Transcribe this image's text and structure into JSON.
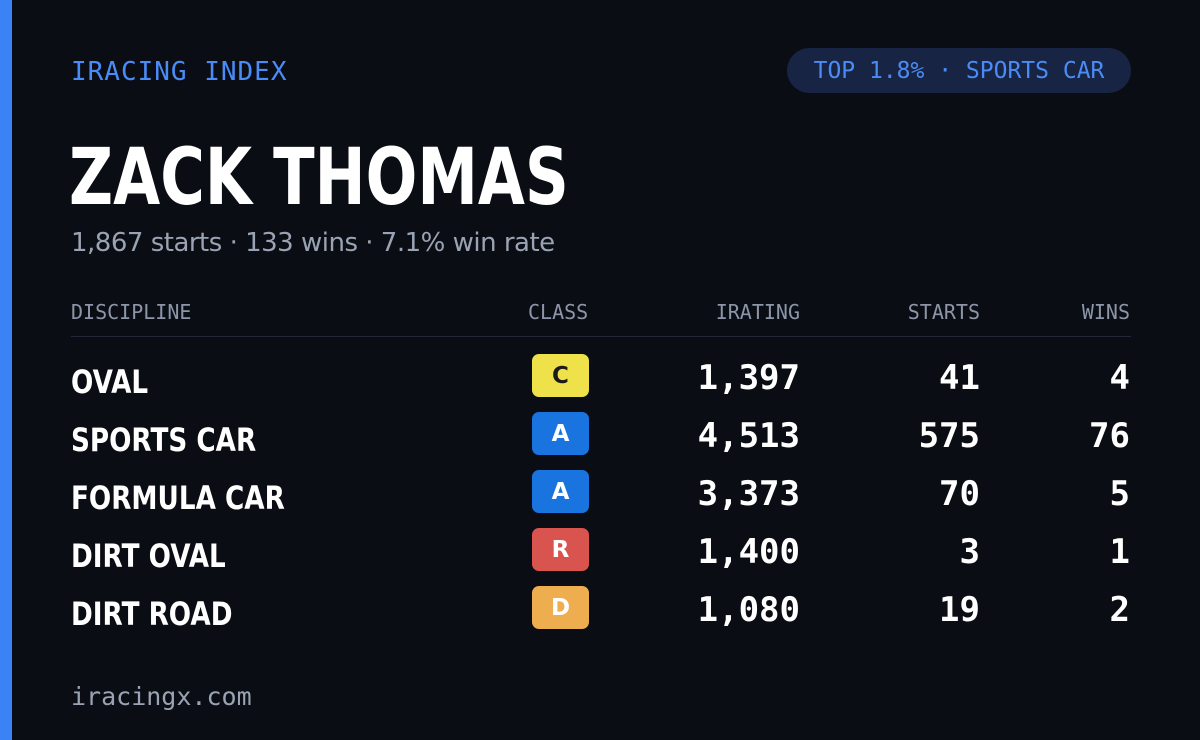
{
  "brand": "IRACING INDEX",
  "rank_badge": "TOP 1.8% · SPORTS CAR",
  "driver": {
    "name": "ZACK THOMAS",
    "summary": "1,867 starts · 133 wins · 7.1% win rate"
  },
  "table": {
    "headers": {
      "discipline": "DISCIPLINE",
      "class": "CLASS",
      "irating": "IRATING",
      "starts": "STARTS",
      "wins": "WINS"
    },
    "rows": [
      {
        "discipline": "OVAL",
        "class": "C",
        "class_color": "#efe14a",
        "class_text_color": "#1a1a1a",
        "irating": "1,397",
        "starts": "41",
        "wins": "4"
      },
      {
        "discipline": "SPORTS CAR",
        "class": "A",
        "class_color": "#1a74df",
        "class_text_color": "#ffffff",
        "irating": "4,513",
        "starts": "575",
        "wins": "76"
      },
      {
        "discipline": "FORMULA CAR",
        "class": "A",
        "class_color": "#1a74df",
        "class_text_color": "#ffffff",
        "irating": "3,373",
        "starts": "70",
        "wins": "5"
      },
      {
        "discipline": "DIRT OVAL",
        "class": "R",
        "class_color": "#d9534f",
        "class_text_color": "#ffffff",
        "irating": "1,400",
        "starts": "3",
        "wins": "1"
      },
      {
        "discipline": "DIRT ROAD",
        "class": "D",
        "class_color": "#eead4e",
        "class_text_color": "#ffffff",
        "irating": "1,080",
        "starts": "19",
        "wins": "2"
      }
    ]
  },
  "footer": "iracingx.com",
  "colors": {
    "background": "#0b0d14",
    "accent": "#3b82f6",
    "pill_background": "#182443",
    "muted_text": "#9aa3b3"
  }
}
